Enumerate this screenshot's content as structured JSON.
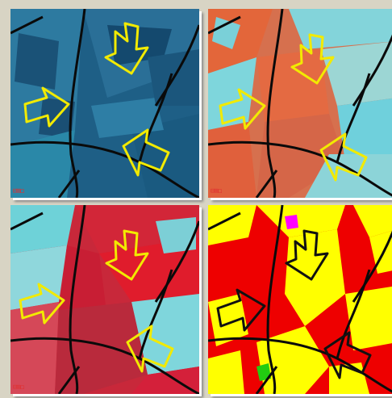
{
  "colors": {
    "page_bg": "#d8d4c4",
    "arrow_yellow": "#f2ea00",
    "field_border": "#0a0a0a",
    "class_red": "#ee0000",
    "class_yellow": "#ffff00",
    "class_magenta": "#ff00ff",
    "class_green": "#22cc11"
  },
  "panels": [
    {
      "id": "top-left",
      "style": "blue-composite",
      "icon": "small-grid-icon"
    },
    {
      "id": "top-right",
      "style": "red-cyan-composite",
      "icon": "small-grid-icon"
    },
    {
      "id": "bottom-left",
      "style": "red-cyan-composite",
      "icon": "small-grid-icon"
    },
    {
      "id": "bottom-right",
      "style": "classification-map"
    }
  ],
  "icon_glyph": "⊟⊞◻"
}
